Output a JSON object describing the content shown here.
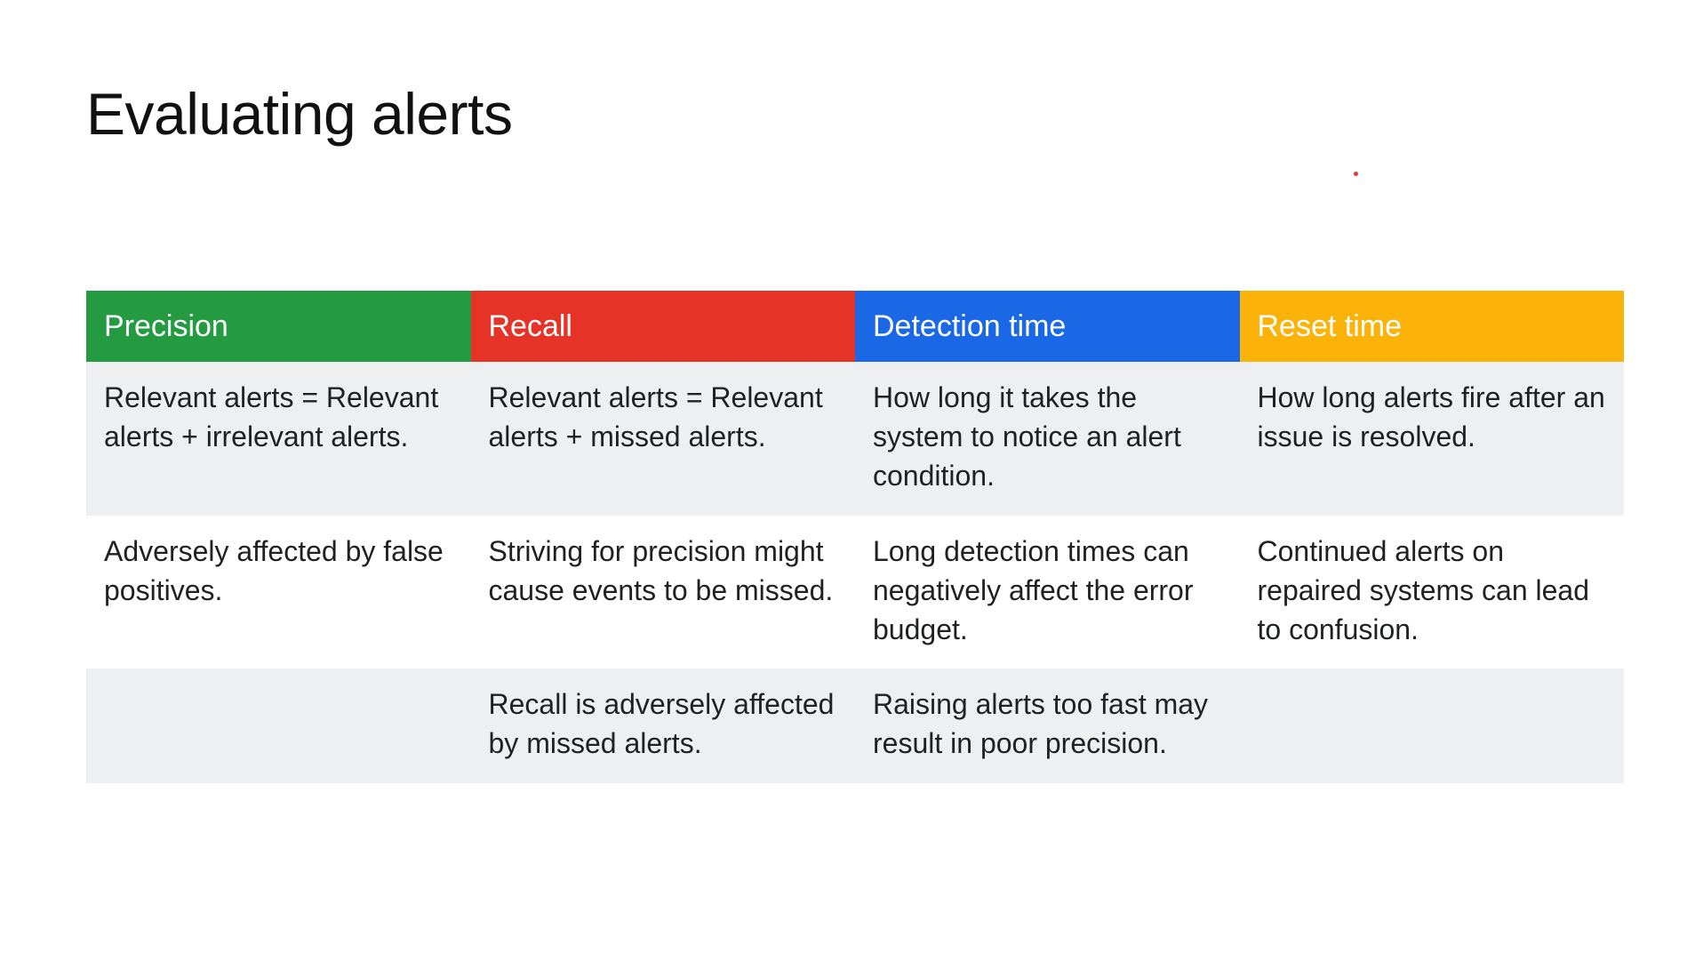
{
  "slide": {
    "title": "Evaluating alerts",
    "laser_pointer_color": "#e53935"
  },
  "table": {
    "columns": [
      {
        "header": "Precision",
        "color": "#249a41"
      },
      {
        "header": "Recall",
        "color": "#e53327"
      },
      {
        "header": "Detection time",
        "color": "#1a68e6"
      },
      {
        "header": "Reset time",
        "color": "#fbb209"
      }
    ],
    "rows": [
      {
        "shaded": true,
        "cells": [
          "Relevant alerts = Relevant alerts + irrelevant alerts.",
          "Relevant alerts = Relevant alerts + missed alerts.",
          "How long it takes the system to notice an alert condition.",
          "How long alerts fire after an issue is resolved."
        ]
      },
      {
        "shaded": false,
        "cells": [
          "Adversely affected by false positives.",
          "Striving for precision might cause events to be missed.",
          "Long detection times can negatively affect the error budget.",
          "Continued alerts on repaired systems can lead to confusion."
        ]
      },
      {
        "shaded": true,
        "cells": [
          "",
          "Recall is adversely affected by missed alerts.",
          "Raising alerts too fast may result in poor precision.",
          ""
        ]
      }
    ]
  }
}
